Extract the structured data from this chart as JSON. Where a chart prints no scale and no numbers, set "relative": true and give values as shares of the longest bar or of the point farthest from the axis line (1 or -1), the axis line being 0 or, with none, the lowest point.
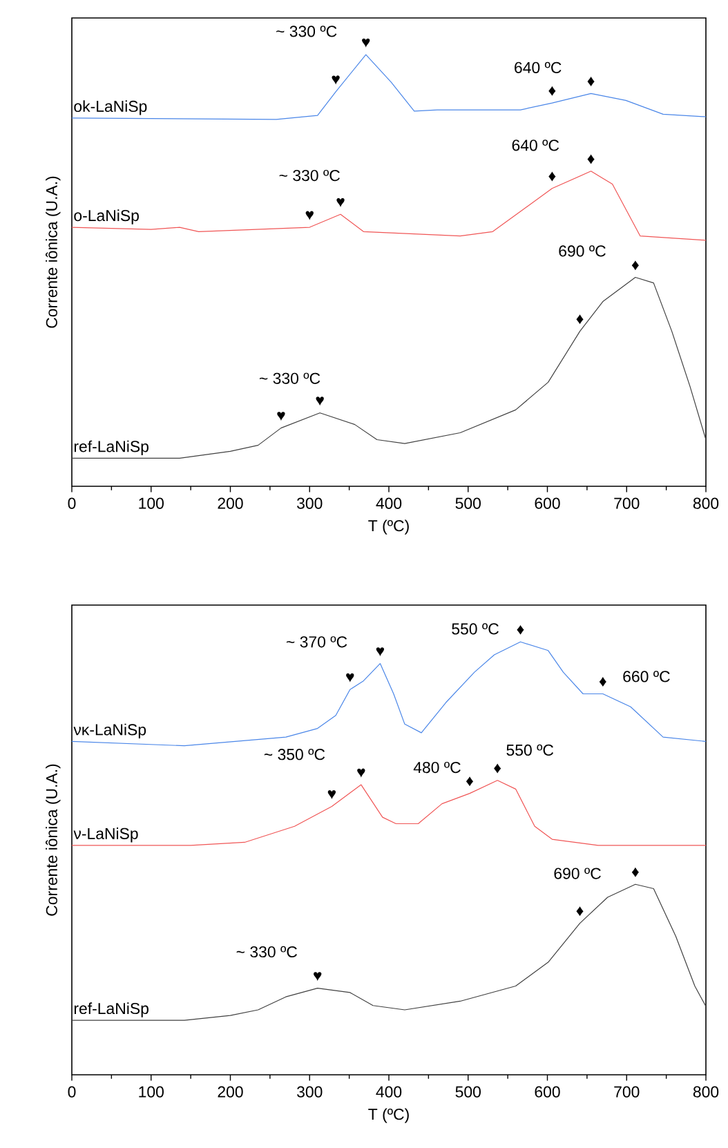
{
  "chart_data": [
    {
      "type": "line",
      "relative": true,
      "xlabel": "T (ºC)",
      "ylabel": "Corrente iônica (U.A.)",
      "xlim": [
        0,
        800
      ],
      "xticks": [
        0,
        100,
        200,
        300,
        400,
        500,
        600,
        700,
        800
      ],
      "series": [
        {
          "name": "οk-LaNiSp",
          "color": "#4a86e8",
          "x": [
            0,
            258,
            310,
            333,
            371,
            403,
            432,
            461,
            566,
            606,
            655,
            699,
            746,
            800
          ],
          "values": [
            0.853,
            0.85,
            0.859,
            0.914,
            1.0,
            0.936,
            0.869,
            0.872,
            0.872,
            0.888,
            0.91,
            0.894,
            0.862,
            0.856
          ]
        },
        {
          "name": "ο-LaNiSp",
          "color": "#f05555",
          "x": [
            0,
            100,
            136,
            160,
            300,
            339,
            368,
            490,
            531,
            606,
            655,
            682,
            717,
            800
          ],
          "values": [
            0.6,
            0.595,
            0.6,
            0.59,
            0.6,
            0.63,
            0.59,
            0.58,
            0.59,
            0.69,
            0.73,
            0.7,
            0.58,
            0.57
          ]
        },
        {
          "name": "ref-LaNiSp",
          "color": "#404040",
          "x": [
            0,
            136,
            200,
            235,
            264,
            313,
            357,
            385,
            420,
            490,
            560,
            601,
            641,
            670,
            711,
            734,
            757,
            780,
            800
          ],
          "values": [
            0.065,
            0.065,
            0.081,
            0.095,
            0.135,
            0.17,
            0.143,
            0.108,
            0.099,
            0.124,
            0.177,
            0.241,
            0.359,
            0.428,
            0.484,
            0.471,
            0.359,
            0.231,
            0.108
          ]
        }
      ],
      "annotations": [
        "~ 330 ºC",
        {
          "text": "♥",
          "x": 333,
          "y": 0.914
        },
        {
          "text": "♥",
          "x": 371,
          "y": 1.0
        },
        "640 ºC",
        {
          "text": "♦",
          "x": 606,
          "y": 0.888
        },
        {
          "text": "♦",
          "x": 655,
          "y": 0.91
        },
        "640 ºC",
        {
          "text": "♦",
          "x": 606,
          "y": 0.69
        },
        {
          "text": "♦",
          "x": 655,
          "y": 0.73
        },
        "~ 330 ºC",
        {
          "text": "♥",
          "x": 300,
          "y": 0.6
        },
        {
          "text": "♥",
          "x": 339,
          "y": 0.63
        },
        "690 ºC",
        {
          "text": "♦",
          "x": 711,
          "y": 0.484
        },
        {
          "text": "♦",
          "x": 641,
          "y": 0.359
        },
        "~ 330 ºC",
        {
          "text": "♥",
          "x": 264,
          "y": 0.135
        },
        {
          "text": "♥",
          "x": 313,
          "y": 0.17
        }
      ]
    },
    {
      "type": "line",
      "relative": true,
      "xlabel": "T (ºC)",
      "ylabel": "Corrente iônica (U.A.)",
      "xlim": [
        0,
        800
      ],
      "xticks": [
        0,
        100,
        200,
        300,
        400,
        500,
        600,
        700,
        800
      ],
      "series": [
        {
          "name": "νκ-LaNiSp",
          "color": "#4a86e8",
          "x": [
            0,
            142,
            270,
            310,
            333,
            351,
            368,
            389,
            406,
            420,
            441,
            472,
            508,
            533,
            566,
            601,
            620,
            645,
            670,
            705,
            746,
            800
          ],
          "values": [
            0.77,
            0.76,
            0.78,
            0.8,
            0.83,
            0.89,
            0.91,
            0.95,
            0.88,
            0.81,
            0.79,
            0.86,
            0.93,
            0.97,
            1.0,
            0.98,
            0.93,
            0.88,
            0.88,
            0.85,
            0.78,
            0.77
          ]
        },
        {
          "name": "ν-LaNiSp",
          "color": "#f05555",
          "x": [
            0,
            150,
            218,
            281,
            328,
            365,
            392,
            409,
            437,
            467,
            502,
            537,
            560,
            584,
            606,
            664,
            800
          ],
          "values": [
            0.53,
            0.53,
            0.537,
            0.574,
            0.62,
            0.67,
            0.595,
            0.58,
            0.58,
            0.626,
            0.65,
            0.68,
            0.66,
            0.574,
            0.544,
            0.53,
            0.53
          ]
        },
        {
          "name": "ref-LaNiSp",
          "color": "#404040",
          "x": [
            0,
            142,
            200,
            235,
            270,
            310,
            351,
            380,
            420,
            490,
            560,
            601,
            641,
            676,
            711,
            734,
            762,
            786,
            800
          ],
          "values": [
            0.126,
            0.126,
            0.137,
            0.15,
            0.18,
            0.2,
            0.19,
            0.16,
            0.15,
            0.17,
            0.205,
            0.26,
            0.35,
            0.41,
            0.44,
            0.43,
            0.32,
            0.205,
            0.158
          ]
        }
      ],
      "annotations": [
        "~ 370 ºC",
        {
          "text": "♥",
          "x": 351,
          "y": 0.89
        },
        {
          "text": "♥",
          "x": 389,
          "y": 0.95
        },
        "550 ºC",
        {
          "text": "♦",
          "x": 566,
          "y": 1.0
        },
        {
          "text": "♦",
          "x": 670,
          "y": 0.88
        },
        "660 ºC",
        "~ 350 ºC",
        {
          "text": "♥",
          "x": 365,
          "y": 0.67
        },
        {
          "text": "♥",
          "x": 328,
          "y": 0.62
        },
        "480 ºC",
        {
          "text": "♦",
          "x": 502,
          "y": 0.65
        },
        {
          "text": "♦",
          "x": 537,
          "y": 0.68
        },
        "550 ºC",
        "690 ºC",
        {
          "text": "♦",
          "x": 711,
          "y": 0.44
        },
        {
          "text": "♦",
          "x": 641,
          "y": 0.35
        },
        "~ 330 ºC",
        {
          "text": "♥",
          "x": 310,
          "y": 0.2
        }
      ]
    }
  ]
}
